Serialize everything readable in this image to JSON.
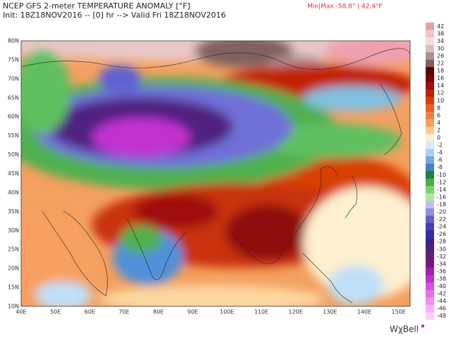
{
  "header": {
    "title": "NCEP GFS 2-meter TEMPERATURE ANOMALY [°F]",
    "subtitle": "Init: 18Z18NOV2016 -- [0] hr --> Valid Fri 18Z18NOV2016",
    "minmax": "Min|Max -58.8° | 42.4°F"
  },
  "map": {
    "lat_labels": [
      "80N",
      "75N",
      "70N",
      "65N",
      "60N",
      "55N",
      "50N",
      "45N",
      "40N",
      "35N",
      "30N",
      "25N",
      "20N",
      "15N",
      "10N"
    ],
    "lon_labels": [
      "40E",
      "50E",
      "60E",
      "70E",
      "80E",
      "90E",
      "100E",
      "110E",
      "120E",
      "130E",
      "140E",
      "150E"
    ]
  },
  "colorbar": {
    "ticks": [
      42,
      38,
      34,
      30,
      26,
      22,
      18,
      16,
      14,
      12,
      10,
      8,
      6,
      4,
      2,
      0,
      -2,
      -4,
      -6,
      -8,
      -10,
      -12,
      -14,
      -16,
      -18,
      -20,
      -22,
      -24,
      -26,
      -28,
      -30,
      -32,
      -34,
      -36,
      -38,
      -40,
      -42,
      -44,
      -46,
      -48
    ],
    "colors": [
      "#e8a0a8",
      "#f4c4c8",
      "#f0e0e0",
      "#d8c0c0",
      "#b09090",
      "#806060",
      "#600000",
      "#800000",
      "#a01010",
      "#c02000",
      "#d84000",
      "#e86020",
      "#f08040",
      "#f8a060",
      "#fcc890",
      "#fff0d0",
      "#d8e8f8",
      "#a8d0f0",
      "#70a8e0",
      "#4080c8",
      "#208040",
      "#40b040",
      "#80d070",
      "#b0e8a0",
      "#c0c0f0",
      "#9090e0",
      "#6060d0",
      "#4040b8",
      "#3030a0",
      "#402090",
      "#502080",
      "#602070",
      "#801090",
      "#a020b0",
      "#c030d0",
      "#d850e0",
      "#e870e8",
      "#f090f0",
      "#f8b0f8",
      "#ffd0ff"
    ]
  },
  "logo": "WχBell"
}
